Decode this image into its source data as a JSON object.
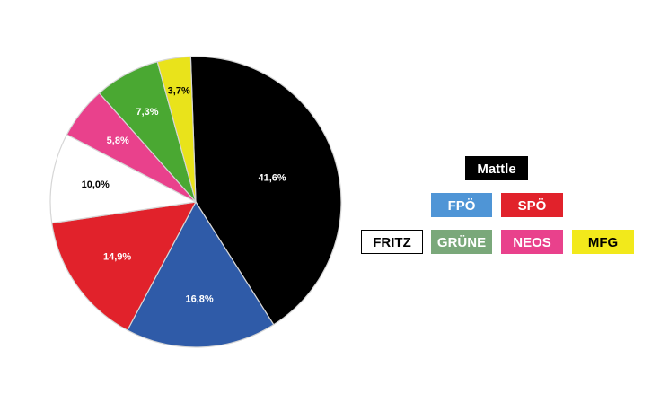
{
  "chart_data": {
    "type": "pie",
    "categories": [
      "Mattle",
      "FPÖ",
      "SPÖ",
      "FRITZ",
      "NEOS",
      "GRÜNE",
      "MFG"
    ],
    "values": [
      41.6,
      16.8,
      14.9,
      10.0,
      5.8,
      7.3,
      3.7
    ],
    "data_labels": [
      "41,6%",
      "16,8%",
      "14,9%",
      "10,0%",
      "5,8%",
      "7,3%",
      "3,7%"
    ],
    "colors": [
      "#000000",
      "#2f5ba8",
      "#e1222b",
      "#ffffff",
      "#e9418c",
      "#4aa832",
      "#e9e31b"
    ],
    "label_colors": [
      "#ffffff",
      "#ffffff",
      "#ffffff",
      "#000000",
      "#ffffff",
      "#ffffff",
      "#000000"
    ],
    "title": "",
    "legend": {
      "placement": "right",
      "items": [
        {
          "label": "Mattle",
          "bg": "#000000",
          "fg": "#ffffff",
          "border": "#000000"
        },
        {
          "label": "FPÖ",
          "bg": "#4f95d6",
          "fg": "#ffffff",
          "border": "#4f95d6"
        },
        {
          "label": "SPÖ",
          "bg": "#e1222b",
          "fg": "#ffffff",
          "border": "#e1222b"
        },
        {
          "label": "FRITZ",
          "bg": "#ffffff",
          "fg": "#000000",
          "border": "#000000"
        },
        {
          "label": "GRÜNE",
          "bg": "#7aa87a",
          "fg": "#ffffff",
          "border": "#7aa87a"
        },
        {
          "label": "NEOS",
          "bg": "#e9418c",
          "fg": "#ffffff",
          "border": "#e9418c"
        },
        {
          "label": "MFG",
          "bg": "#f2e91b",
          "fg": "#000000",
          "border": "#f2e91b"
        }
      ]
    }
  }
}
